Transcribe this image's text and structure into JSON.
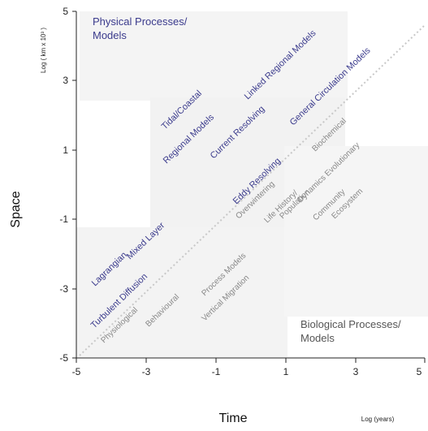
{
  "corner_labels": {
    "physical_line1": "Physical Processes/",
    "physical_line2": "Models",
    "biological_line1": "Biological Processes/",
    "biological_line2": "Models"
  },
  "axes": {
    "y_title": "Space",
    "y_unit": "Log ( km x 10³ )",
    "x_title": "Time",
    "x_unit": "Log (years)",
    "x_ticks": [
      "-5",
      "-3",
      "-1",
      "1",
      "3",
      "5"
    ],
    "y_ticks": [
      "5",
      "3",
      "1",
      "-1",
      "-3",
      "-5"
    ]
  },
  "physical_models": {
    "tidal_coastal": "Tidal/Coastal",
    "regional_models": "Regional Models",
    "linked_regional": "Linked Regional Models",
    "current_resolving": "Current Resolving",
    "general_circulation": "General Circulation Models",
    "eddy_resolving": "Eddy Resolving",
    "lagrangian": "Lagrangian",
    "mixed_layer": "Mixed Layer",
    "turbulent_diffusion": "Turbulent Diffusion"
  },
  "biological_models": {
    "physiological": "Physiological",
    "behavioural": "Behavioural",
    "process_models": "Process Models",
    "vertical_migration": "Vertical Migration",
    "overwintering": "Overwintering",
    "life_history": "Life History/",
    "population": "Population",
    "biochemical": "Biochemical",
    "dynamics_evolutionary": "Dynamics Evolutionary",
    "community": "Community",
    "ecosystem": "Ecosystem"
  },
  "colors": {
    "physical_text": "#3a3a8c",
    "biological_text": "#888888",
    "shade": "#f2f2f2",
    "diagonal": "#c8c8c8"
  }
}
